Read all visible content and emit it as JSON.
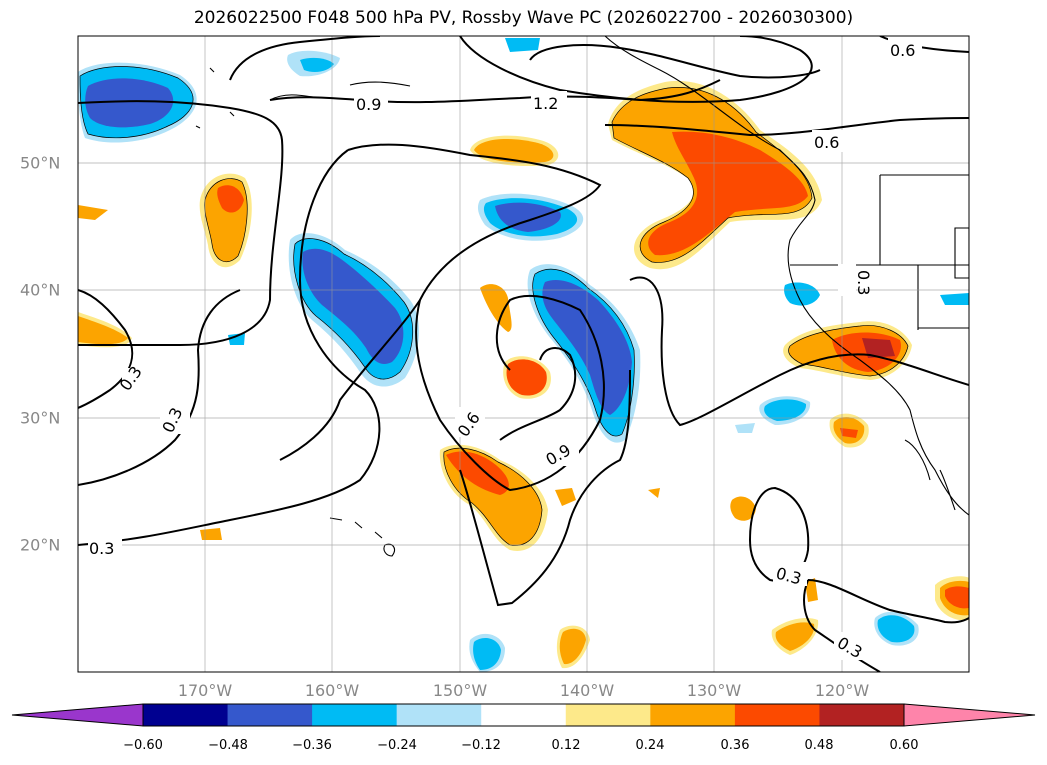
{
  "title": "2026022500 F048 500 hPa PV, Rossby Wave PC (2026022700 - 2026030300)",
  "x_ticks": [
    "170°W",
    "160°W",
    "150°W",
    "140°W",
    "130°W",
    "120°W"
  ],
  "y_ticks": [
    "50°N",
    "40°N",
    "30°N",
    "20°N"
  ],
  "contour_labels": [
    "0.6",
    "1.2",
    "0.9",
    "0.6",
    "0.3",
    "0.3",
    "0.3",
    "0.6",
    "0.9",
    "0.3",
    "0.3",
    "0.3"
  ],
  "colorbar": {
    "labels": [
      "−0.60",
      "−0.48",
      "−0.36",
      "−0.24",
      "−0.12",
      "0.12",
      "0.24",
      "0.36",
      "0.48",
      "0.60"
    ],
    "colors": [
      "#9a36cc",
      "#000090",
      "#3558cc",
      "#00bbf4",
      "#b0e2f8",
      "#ffffff",
      "#fde98a",
      "#fca400",
      "#fc4a00",
      "#b22222",
      "#fe84aa"
    ]
  }
}
